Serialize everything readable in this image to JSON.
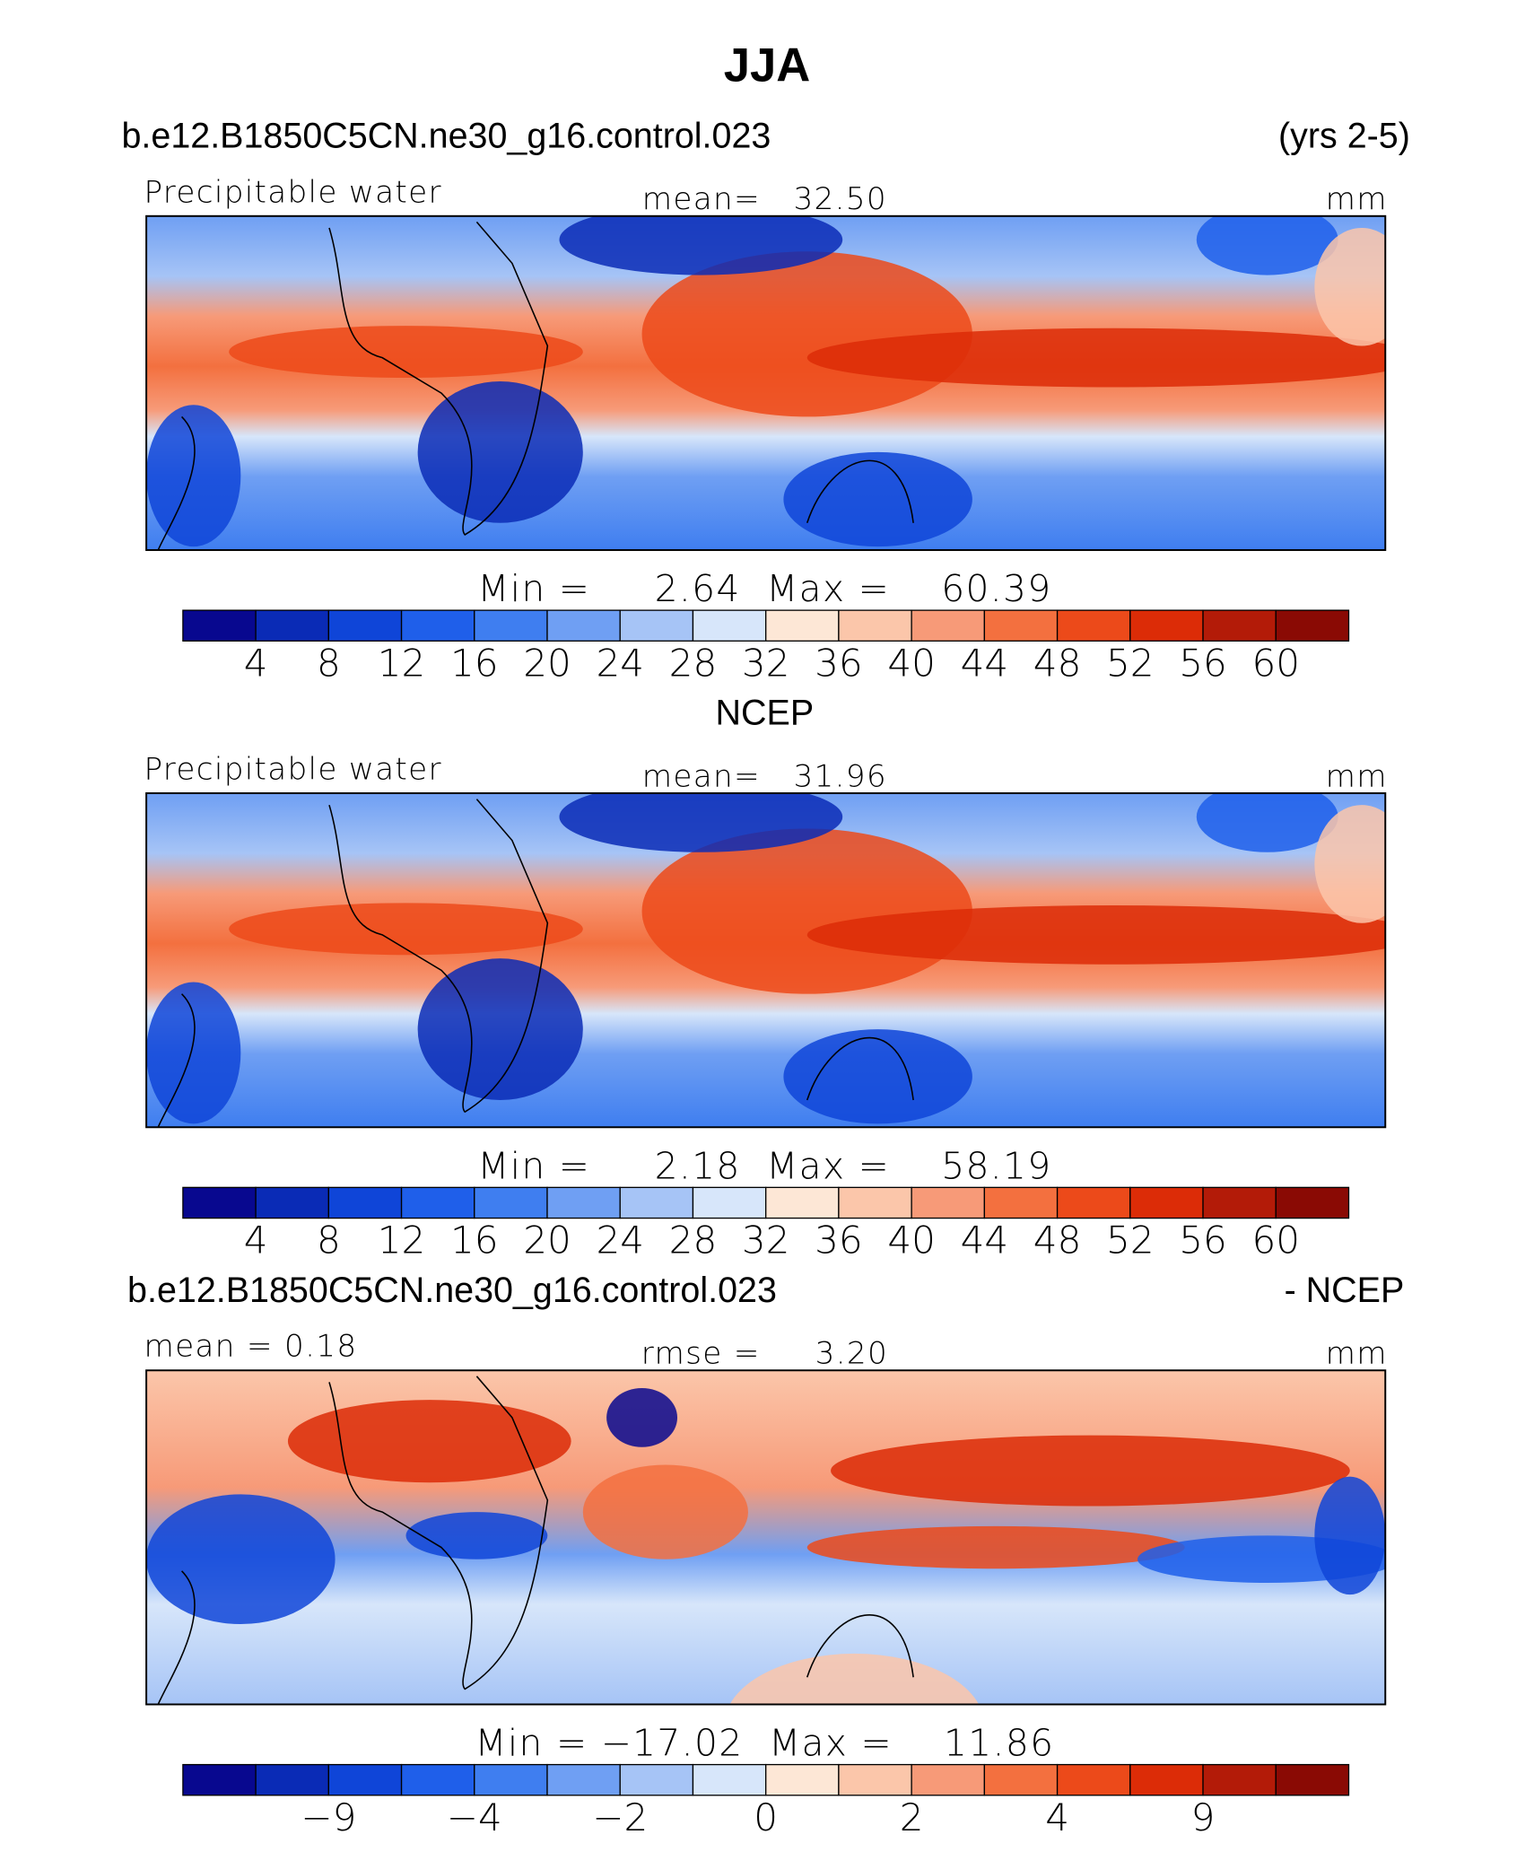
{
  "title": "JJA",
  "colors": [
    "#08088f",
    "#0a2bb6",
    "#0f45d8",
    "#1f5fea",
    "#3f7ef0",
    "#6f9ff3",
    "#a6c4f6",
    "#d7e6fa",
    "#fde7d6",
    "#fbc6aa",
    "#f79a78",
    "#f3703f",
    "#ec4a1a",
    "#dc2c07",
    "#b31b08",
    "#8a0a04"
  ],
  "panels": [
    {
      "left_title": "b.e12.B1850C5CN.ne30_g16.control.023",
      "right_title": "(yrs 2-5)",
      "left_label": "Precipitable water",
      "center_label": "mean=   32.50",
      "right_label": "mm",
      "minmax": "Min =     2.64  Max =    60.39",
      "colorbar_labels": [
        "4",
        "8",
        "12",
        "16",
        "20",
        "24",
        "28",
        "32",
        "36",
        "40",
        "44",
        "48",
        "52",
        "56",
        "60"
      ]
    },
    {
      "center_title": "NCEP",
      "left_label": "Precipitable water",
      "center_label": "mean=   31.96",
      "right_label": "mm",
      "minmax": "Min =     2.18  Max =    58.19",
      "colorbar_labels": [
        "4",
        "8",
        "12",
        "16",
        "20",
        "24",
        "28",
        "32",
        "36",
        "40",
        "44",
        "48",
        "52",
        "56",
        "60"
      ]
    },
    {
      "left_title": "b.e12.B1850C5CN.ne30_g16.control.023",
      "right_title": "- NCEP",
      "left_label": "mean =    0.18",
      "center_label": "rmse =     3.20",
      "right_label": "mm",
      "minmax": "Min = −17.02  Max =    11.86",
      "colorbar_labels": [
        "−9",
        "−4",
        "−2",
        "0",
        "2",
        "4",
        "9"
      ]
    }
  ]
}
